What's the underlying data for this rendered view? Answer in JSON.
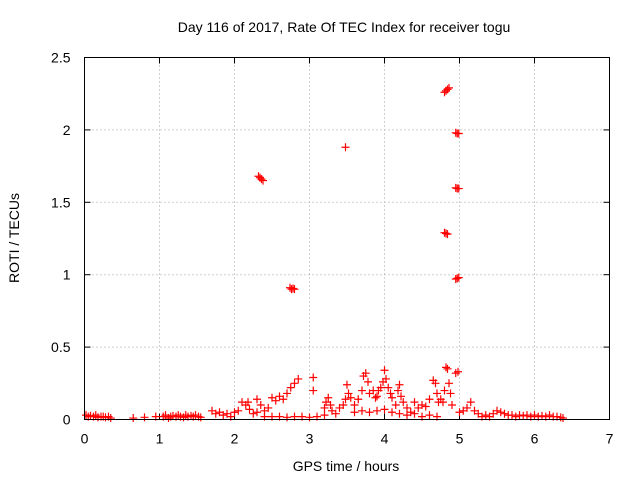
{
  "chart_data": {
    "type": "scatter",
    "title": "Day 116 of 2017, Rate Of TEC Index for receiver togu",
    "xlabel": "GPS time / hours",
    "ylabel": "ROTI / TECUs",
    "xlim": [
      0,
      7
    ],
    "ylim": [
      0,
      2.5
    ],
    "xticks": [
      0,
      1,
      2,
      3,
      4,
      5,
      6,
      7
    ],
    "xtick_labels": [
      "0",
      "1",
      "2",
      "3",
      "4",
      "5",
      "6",
      "7"
    ],
    "yticks": [
      0,
      0.5,
      1,
      1.5,
      2,
      2.5
    ],
    "ytick_labels": [
      "0",
      "0.5",
      "1",
      "1.5",
      "2",
      "2.5"
    ],
    "grid": true,
    "marker": "+",
    "color": "#ff0000",
    "series": [
      {
        "points": [
          [
            0.02,
            0.03
          ],
          [
            0.05,
            0.02
          ],
          [
            0.08,
            0.025
          ],
          [
            0.12,
            0.02
          ],
          [
            0.15,
            0.03
          ],
          [
            0.18,
            0.015
          ],
          [
            0.22,
            0.02
          ],
          [
            0.25,
            0.02
          ],
          [
            0.28,
            0.015
          ],
          [
            0.32,
            0.02
          ],
          [
            0.35,
            0.01
          ],
          [
            0.65,
            0.01
          ],
          [
            0.8,
            0.015
          ],
          [
            0.95,
            0.02
          ],
          [
            1.05,
            0.02
          ],
          [
            1.08,
            0.03
          ],
          [
            1.12,
            0.01
          ],
          [
            1.15,
            0.02
          ],
          [
            1.18,
            0.025
          ],
          [
            1.22,
            0.02
          ],
          [
            1.25,
            0.03
          ],
          [
            1.28,
            0.02
          ],
          [
            1.32,
            0.015
          ],
          [
            1.35,
            0.03
          ],
          [
            1.38,
            0.02
          ],
          [
            1.42,
            0.025
          ],
          [
            1.45,
            0.02
          ],
          [
            1.48,
            0.03
          ],
          [
            1.52,
            0.02
          ],
          [
            1.55,
            0.015
          ],
          [
            1.7,
            0.06
          ],
          [
            1.75,
            0.04
          ],
          [
            1.8,
            0.05
          ],
          [
            1.85,
            0.03
          ],
          [
            1.9,
            0.04
          ],
          [
            1.95,
            0.02
          ],
          [
            2.0,
            0.05
          ],
          [
            2.05,
            0.06
          ],
          [
            2.1,
            0.12
          ],
          [
            2.15,
            0.1
          ],
          [
            2.18,
            0.12
          ],
          [
            2.2,
            0.07
          ],
          [
            2.25,
            0.04
          ],
          [
            2.3,
            0.05
          ],
          [
            2.32,
            1.68
          ],
          [
            2.34,
            1.67
          ],
          [
            2.36,
            1.66
          ],
          [
            2.38,
            1.65
          ],
          [
            2.3,
            0.14
          ],
          [
            2.35,
            0.1
          ],
          [
            2.4,
            0.06
          ],
          [
            2.45,
            0.08
          ],
          [
            2.5,
            0.15
          ],
          [
            2.55,
            0.13
          ],
          [
            2.6,
            0.16
          ],
          [
            2.65,
            0.14
          ],
          [
            2.7,
            0.18
          ],
          [
            2.75,
            0.22
          ],
          [
            2.8,
            0.25
          ],
          [
            2.85,
            0.28
          ],
          [
            2.74,
            0.91
          ],
          [
            2.76,
            0.9
          ],
          [
            2.78,
            0.905
          ],
          [
            2.8,
            0.9
          ],
          [
            2.4,
            0.02
          ],
          [
            2.5,
            0.02
          ],
          [
            2.6,
            0.02
          ],
          [
            2.7,
            0.015
          ],
          [
            2.8,
            0.02
          ],
          [
            2.9,
            0.02
          ],
          [
            3.0,
            0.015
          ],
          [
            3.05,
            0.2
          ],
          [
            3.05,
            0.29
          ],
          [
            3.1,
            0.02
          ],
          [
            3.2,
            0.03
          ],
          [
            3.2,
            0.08
          ],
          [
            3.22,
            0.12
          ],
          [
            3.25,
            0.15
          ],
          [
            3.28,
            0.1
          ],
          [
            3.3,
            0.06
          ],
          [
            3.35,
            0.04
          ],
          [
            3.4,
            0.08
          ],
          [
            3.45,
            0.1
          ],
          [
            3.48,
            0.14
          ],
          [
            3.5,
            0.24
          ],
          [
            3.52,
            0.18
          ],
          [
            3.55,
            0.15
          ],
          [
            3.48,
            1.88
          ],
          [
            3.6,
            0.1
          ],
          [
            3.65,
            0.14
          ],
          [
            3.7,
            0.2
          ],
          [
            3.72,
            0.3
          ],
          [
            3.75,
            0.32
          ],
          [
            3.78,
            0.26
          ],
          [
            3.8,
            0.18
          ],
          [
            3.85,
            0.2
          ],
          [
            3.88,
            0.15
          ],
          [
            3.9,
            0.16
          ],
          [
            3.92,
            0.2
          ],
          [
            3.95,
            0.22
          ],
          [
            3.98,
            0.26
          ],
          [
            4.0,
            0.34
          ],
          [
            4.02,
            0.28
          ],
          [
            4.05,
            0.22
          ],
          [
            4.08,
            0.18
          ],
          [
            4.1,
            0.15
          ],
          [
            4.15,
            0.1
          ],
          [
            4.18,
            0.2
          ],
          [
            4.2,
            0.24
          ],
          [
            4.22,
            0.16
          ],
          [
            4.25,
            0.12
          ],
          [
            4.3,
            0.08
          ],
          [
            4.35,
            0.05
          ],
          [
            3.6,
            0.05
          ],
          [
            3.7,
            0.06
          ],
          [
            3.8,
            0.05
          ],
          [
            3.9,
            0.06
          ],
          [
            4.0,
            0.07
          ],
          [
            4.1,
            0.05
          ],
          [
            4.2,
            0.04
          ],
          [
            4.3,
            0.03
          ],
          [
            4.4,
            0.04
          ],
          [
            4.5,
            0.02
          ],
          [
            4.6,
            0.03
          ],
          [
            4.7,
            0.02
          ],
          [
            4.4,
            0.12
          ],
          [
            4.45,
            0.08
          ],
          [
            4.5,
            0.1
          ],
          [
            4.55,
            0.09
          ],
          [
            4.6,
            0.14
          ],
          [
            4.65,
            0.27
          ],
          [
            4.68,
            0.25
          ],
          [
            4.7,
            0.18
          ],
          [
            4.72,
            0.12
          ],
          [
            4.75,
            0.14
          ],
          [
            4.78,
            0.12
          ],
          [
            4.8,
            0.2
          ],
          [
            4.82,
            0.36
          ],
          [
            4.84,
            0.35
          ],
          [
            4.86,
            0.25
          ],
          [
            4.88,
            0.18
          ],
          [
            4.9,
            0.1
          ],
          [
            4.95,
            0.32
          ],
          [
            4.98,
            0.33
          ],
          [
            5.0,
            0.05
          ],
          [
            5.05,
            0.06
          ],
          [
            5.1,
            0.08
          ],
          [
            5.15,
            0.12
          ],
          [
            5.2,
            0.06
          ],
          [
            5.25,
            0.04
          ],
          [
            4.8,
            2.26
          ],
          [
            4.82,
            2.27
          ],
          [
            4.84,
            2.28
          ],
          [
            4.86,
            2.29
          ],
          [
            4.8,
            1.29
          ],
          [
            4.82,
            1.285
          ],
          [
            4.84,
            1.28
          ],
          [
            4.95,
            1.98
          ],
          [
            4.97,
            1.975
          ],
          [
            4.99,
            1.975
          ],
          [
            4.95,
            1.6
          ],
          [
            4.97,
            1.595
          ],
          [
            4.99,
            1.595
          ],
          [
            4.95,
            0.97
          ],
          [
            4.97,
            0.975
          ],
          [
            4.99,
            0.98
          ],
          [
            5.3,
            0.02
          ],
          [
            5.35,
            0.03
          ],
          [
            5.4,
            0.02
          ],
          [
            5.45,
            0.04
          ],
          [
            5.5,
            0.06
          ],
          [
            5.55,
            0.05
          ],
          [
            5.6,
            0.04
          ],
          [
            5.65,
            0.03
          ],
          [
            5.7,
            0.03
          ],
          [
            5.75,
            0.02
          ],
          [
            5.8,
            0.03
          ],
          [
            5.85,
            0.025
          ],
          [
            5.9,
            0.03
          ],
          [
            5.95,
            0.02
          ],
          [
            6.0,
            0.03
          ],
          [
            6.05,
            0.02
          ],
          [
            6.1,
            0.025
          ],
          [
            6.15,
            0.02
          ],
          [
            6.2,
            0.03
          ],
          [
            6.25,
            0.02
          ],
          [
            6.3,
            0.02
          ],
          [
            6.35,
            0.015
          ],
          [
            6.38,
            0.01
          ]
        ]
      }
    ]
  }
}
